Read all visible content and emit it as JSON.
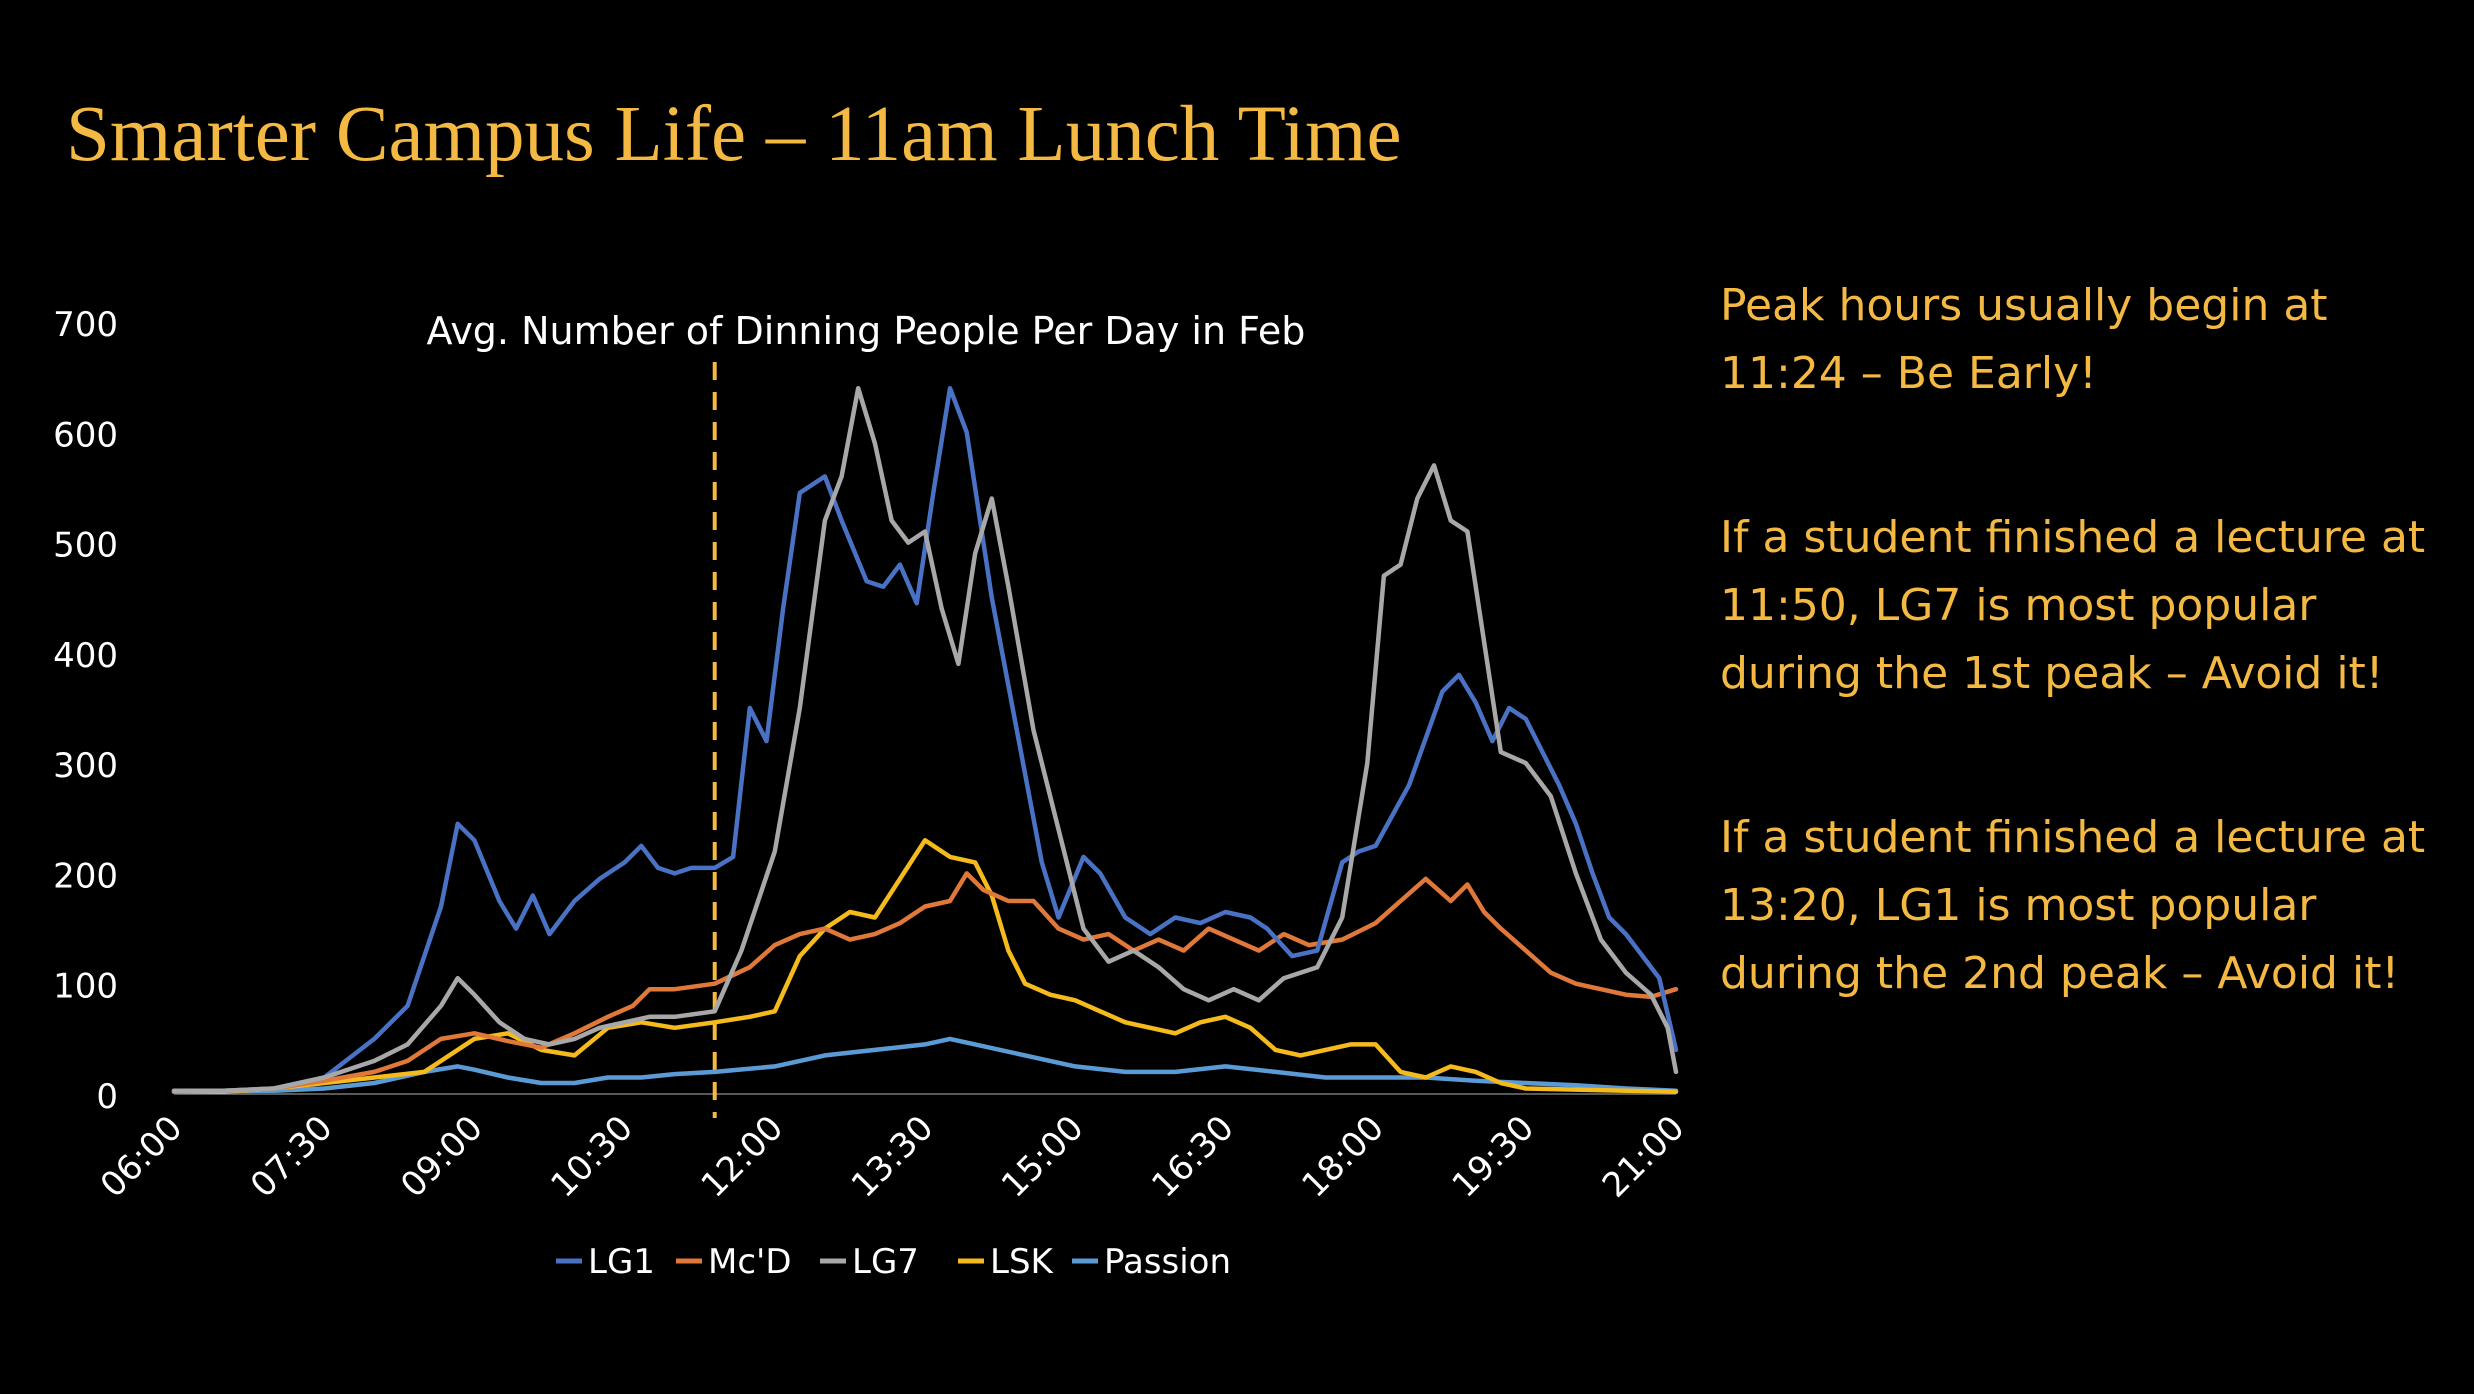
{
  "slide": {
    "title": "Smarter Campus Life – 11am Lunch Time",
    "notes": [
      {
        "lines": [
          "Peak hours usually begin at",
          "11:24 – Be Early!"
        ]
      },
      {
        "lines": [
          "If a student finished a lecture at",
          "11:50, LG7 is most popular",
          "during the 1st peak – Avoid it!"
        ]
      },
      {
        "lines": [
          "If a student finished a lecture at",
          "13:20, LG1 is most popular",
          "during the 2nd peak – Avoid it!"
        ]
      }
    ]
  },
  "colors": {
    "background": "#000000",
    "accent": "#f4b942",
    "text": "#ffffff",
    "LG1": "#4a72c4",
    "McD": "#e0783a",
    "LG7": "#a8a8a8",
    "LSK": "#f5bb1c",
    "Passion": "#5a9bd5"
  },
  "chart_data": {
    "type": "line",
    "title": "Avg. Number of Dinning People Per Day in Feb",
    "xlabel": "",
    "ylabel": "",
    "ylim": [
      0,
      700
    ],
    "yticks": [
      0,
      100,
      200,
      300,
      400,
      500,
      600,
      700
    ],
    "xlim": [
      "06:00",
      "21:00"
    ],
    "xticks": [
      "06:00",
      "07:30",
      "09:00",
      "10:30",
      "12:00",
      "13:30",
      "15:00",
      "16:30",
      "18:00",
      "19:30",
      "21:00"
    ],
    "grid": false,
    "legend_position": "bottom",
    "reference_line": {
      "x": "11:24",
      "style": "dashed",
      "color": "#f4b942"
    },
    "series": [
      {
        "name": "LG1",
        "points": [
          [
            "06:00",
            3
          ],
          [
            "06:30",
            3
          ],
          [
            "07:00",
            5
          ],
          [
            "07:30",
            15
          ],
          [
            "08:00",
            50
          ],
          [
            "08:20",
            80
          ],
          [
            "08:40",
            170
          ],
          [
            "08:50",
            245
          ],
          [
            "09:00",
            230
          ],
          [
            "09:15",
            175
          ],
          [
            "09:25",
            150
          ],
          [
            "09:35",
            180
          ],
          [
            "09:45",
            145
          ],
          [
            "10:00",
            175
          ],
          [
            "10:15",
            195
          ],
          [
            "10:30",
            210
          ],
          [
            "10:40",
            225
          ],
          [
            "10:50",
            205
          ],
          [
            "11:00",
            200
          ],
          [
            "11:10",
            205
          ],
          [
            "11:24",
            205
          ],
          [
            "11:35",
            215
          ],
          [
            "11:45",
            350
          ],
          [
            "11:55",
            320
          ],
          [
            "12:05",
            440
          ],
          [
            "12:15",
            545
          ],
          [
            "12:30",
            560
          ],
          [
            "12:40",
            520
          ],
          [
            "12:55",
            465
          ],
          [
            "13:05",
            460
          ],
          [
            "13:15",
            480
          ],
          [
            "13:25",
            445
          ],
          [
            "13:35",
            545
          ],
          [
            "13:45",
            640
          ],
          [
            "13:55",
            600
          ],
          [
            "14:10",
            450
          ],
          [
            "14:25",
            330
          ],
          [
            "14:40",
            210
          ],
          [
            "14:50",
            160
          ],
          [
            "15:05",
            215
          ],
          [
            "15:15",
            200
          ],
          [
            "15:30",
            160
          ],
          [
            "15:45",
            145
          ],
          [
            "16:00",
            160
          ],
          [
            "16:15",
            155
          ],
          [
            "16:30",
            165
          ],
          [
            "16:45",
            160
          ],
          [
            "16:55",
            150
          ],
          [
            "17:10",
            125
          ],
          [
            "17:25",
            130
          ],
          [
            "17:40",
            210
          ],
          [
            "17:50",
            220
          ],
          [
            "18:00",
            225
          ],
          [
            "18:20",
            280
          ],
          [
            "18:40",
            365
          ],
          [
            "18:50",
            380
          ],
          [
            "19:00",
            355
          ],
          [
            "19:10",
            320
          ],
          [
            "19:20",
            350
          ],
          [
            "19:30",
            340
          ],
          [
            "19:40",
            310
          ],
          [
            "19:50",
            280
          ],
          [
            "20:00",
            245
          ],
          [
            "20:10",
            200
          ],
          [
            "20:20",
            160
          ],
          [
            "20:30",
            145
          ],
          [
            "20:40",
            125
          ],
          [
            "20:50",
            105
          ],
          [
            "21:00",
            40
          ]
        ]
      },
      {
        "name": "Mc'D",
        "points": [
          [
            "06:00",
            2
          ],
          [
            "06:30",
            3
          ],
          [
            "07:00",
            5
          ],
          [
            "07:30",
            12
          ],
          [
            "08:00",
            20
          ],
          [
            "08:20",
            30
          ],
          [
            "08:40",
            50
          ],
          [
            "09:00",
            55
          ],
          [
            "09:20",
            48
          ],
          [
            "09:40",
            42
          ],
          [
            "10:00",
            55
          ],
          [
            "10:20",
            70
          ],
          [
            "10:35",
            80
          ],
          [
            "10:45",
            95
          ],
          [
            "11:00",
            95
          ],
          [
            "11:24",
            100
          ],
          [
            "11:45",
            115
          ],
          [
            "12:00",
            135
          ],
          [
            "12:15",
            145
          ],
          [
            "12:30",
            150
          ],
          [
            "12:45",
            140
          ],
          [
            "13:00",
            145
          ],
          [
            "13:15",
            155
          ],
          [
            "13:30",
            170
          ],
          [
            "13:45",
            175
          ],
          [
            "13:55",
            200
          ],
          [
            "14:05",
            185
          ],
          [
            "14:20",
            175
          ],
          [
            "14:35",
            175
          ],
          [
            "14:50",
            150
          ],
          [
            "15:05",
            140
          ],
          [
            "15:20",
            145
          ],
          [
            "15:35",
            130
          ],
          [
            "15:50",
            140
          ],
          [
            "16:05",
            130
          ],
          [
            "16:20",
            150
          ],
          [
            "16:35",
            140
          ],
          [
            "16:50",
            130
          ],
          [
            "17:05",
            145
          ],
          [
            "17:20",
            135
          ],
          [
            "17:40",
            140
          ],
          [
            "18:00",
            155
          ],
          [
            "18:15",
            175
          ],
          [
            "18:30",
            195
          ],
          [
            "18:45",
            175
          ],
          [
            "18:55",
            190
          ],
          [
            "19:05",
            165
          ],
          [
            "19:15",
            150
          ],
          [
            "19:30",
            130
          ],
          [
            "19:45",
            110
          ],
          [
            "20:00",
            100
          ],
          [
            "20:15",
            95
          ],
          [
            "20:30",
            90
          ],
          [
            "20:45",
            88
          ],
          [
            "21:00",
            95
          ]
        ]
      },
      {
        "name": "LG7",
        "points": [
          [
            "06:00",
            3
          ],
          [
            "06:30",
            3
          ],
          [
            "07:00",
            5
          ],
          [
            "07:30",
            15
          ],
          [
            "08:00",
            30
          ],
          [
            "08:20",
            45
          ],
          [
            "08:40",
            80
          ],
          [
            "08:50",
            105
          ],
          [
            "09:00",
            90
          ],
          [
            "09:15",
            65
          ],
          [
            "09:30",
            50
          ],
          [
            "09:45",
            45
          ],
          [
            "10:00",
            50
          ],
          [
            "10:15",
            60
          ],
          [
            "10:30",
            65
          ],
          [
            "10:45",
            70
          ],
          [
            "11:00",
            70
          ],
          [
            "11:24",
            75
          ],
          [
            "11:40",
            130
          ],
          [
            "12:00",
            220
          ],
          [
            "12:15",
            350
          ],
          [
            "12:30",
            520
          ],
          [
            "12:40",
            560
          ],
          [
            "12:50",
            640
          ],
          [
            "13:00",
            590
          ],
          [
            "13:10",
            520
          ],
          [
            "13:20",
            500
          ],
          [
            "13:30",
            510
          ],
          [
            "13:40",
            440
          ],
          [
            "13:50",
            390
          ],
          [
            "14:00",
            490
          ],
          [
            "14:10",
            540
          ],
          [
            "14:20",
            460
          ],
          [
            "14:35",
            330
          ],
          [
            "14:50",
            240
          ],
          [
            "15:05",
            150
          ],
          [
            "15:20",
            120
          ],
          [
            "15:35",
            130
          ],
          [
            "15:50",
            115
          ],
          [
            "16:05",
            95
          ],
          [
            "16:20",
            85
          ],
          [
            "16:35",
            95
          ],
          [
            "16:50",
            85
          ],
          [
            "17:05",
            105
          ],
          [
            "17:25",
            115
          ],
          [
            "17:40",
            160
          ],
          [
            "17:55",
            300
          ],
          [
            "18:05",
            470
          ],
          [
            "18:15",
            480
          ],
          [
            "18:25",
            540
          ],
          [
            "18:35",
            570
          ],
          [
            "18:45",
            520
          ],
          [
            "18:55",
            510
          ],
          [
            "19:05",
            410
          ],
          [
            "19:15",
            310
          ],
          [
            "19:30",
            300
          ],
          [
            "19:45",
            270
          ],
          [
            "20:00",
            200
          ],
          [
            "20:15",
            140
          ],
          [
            "20:30",
            110
          ],
          [
            "20:45",
            90
          ],
          [
            "20:55",
            60
          ],
          [
            "21:00",
            20
          ]
        ]
      },
      {
        "name": "LSK",
        "points": [
          [
            "06:00",
            2
          ],
          [
            "06:30",
            2
          ],
          [
            "07:00",
            5
          ],
          [
            "07:30",
            10
          ],
          [
            "08:00",
            15
          ],
          [
            "08:30",
            20
          ],
          [
            "09:00",
            50
          ],
          [
            "09:20",
            55
          ],
          [
            "09:40",
            40
          ],
          [
            "10:00",
            35
          ],
          [
            "10:20",
            60
          ],
          [
            "10:40",
            65
          ],
          [
            "11:00",
            60
          ],
          [
            "11:24",
            65
          ],
          [
            "11:45",
            70
          ],
          [
            "12:00",
            75
          ],
          [
            "12:15",
            125
          ],
          [
            "12:30",
            150
          ],
          [
            "12:45",
            165
          ],
          [
            "13:00",
            160
          ],
          [
            "13:15",
            195
          ],
          [
            "13:30",
            230
          ],
          [
            "13:45",
            215
          ],
          [
            "14:00",
            210
          ],
          [
            "14:10",
            180
          ],
          [
            "14:20",
            130
          ],
          [
            "14:30",
            100
          ],
          [
            "14:45",
            90
          ],
          [
            "15:00",
            85
          ],
          [
            "15:15",
            75
          ],
          [
            "15:30",
            65
          ],
          [
            "15:45",
            60
          ],
          [
            "16:00",
            55
          ],
          [
            "16:15",
            65
          ],
          [
            "16:30",
            70
          ],
          [
            "16:45",
            60
          ],
          [
            "17:00",
            40
          ],
          [
            "17:15",
            35
          ],
          [
            "17:30",
            40
          ],
          [
            "17:45",
            45
          ],
          [
            "18:00",
            45
          ],
          [
            "18:15",
            20
          ],
          [
            "18:30",
            15
          ],
          [
            "18:45",
            25
          ],
          [
            "19:00",
            20
          ],
          [
            "19:15",
            10
          ],
          [
            "19:30",
            5
          ],
          [
            "20:00",
            4
          ],
          [
            "20:30",
            3
          ],
          [
            "21:00",
            2
          ]
        ]
      },
      {
        "name": "Passion",
        "points": [
          [
            "06:00",
            2
          ],
          [
            "07:00",
            3
          ],
          [
            "07:30",
            5
          ],
          [
            "08:00",
            10
          ],
          [
            "08:30",
            20
          ],
          [
            "08:50",
            25
          ],
          [
            "09:00",
            22
          ],
          [
            "09:20",
            15
          ],
          [
            "09:40",
            10
          ],
          [
            "10:00",
            10
          ],
          [
            "10:20",
            15
          ],
          [
            "10:40",
            15
          ],
          [
            "11:00",
            18
          ],
          [
            "11:24",
            20
          ],
          [
            "12:00",
            25
          ],
          [
            "12:30",
            35
          ],
          [
            "13:00",
            40
          ],
          [
            "13:30",
            45
          ],
          [
            "13:45",
            50
          ],
          [
            "14:00",
            45
          ],
          [
            "14:30",
            35
          ],
          [
            "15:00",
            25
          ],
          [
            "15:30",
            20
          ],
          [
            "16:00",
            20
          ],
          [
            "16:30",
            25
          ],
          [
            "17:00",
            20
          ],
          [
            "17:30",
            15
          ],
          [
            "18:00",
            15
          ],
          [
            "18:30",
            15
          ],
          [
            "19:00",
            12
          ],
          [
            "19:30",
            10
          ],
          [
            "20:00",
            8
          ],
          [
            "20:30",
            5
          ],
          [
            "21:00",
            3
          ]
        ]
      }
    ]
  }
}
